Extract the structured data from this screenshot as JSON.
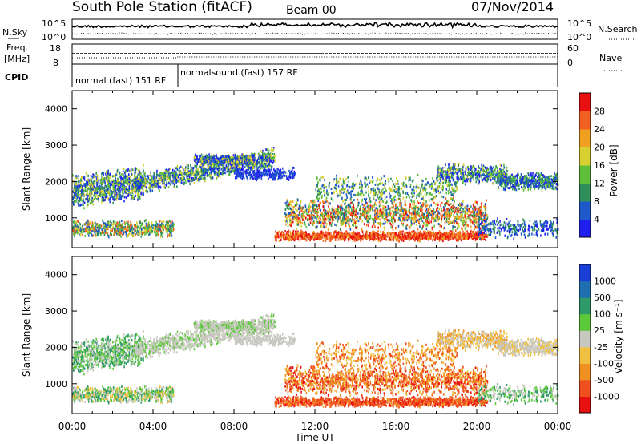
{
  "header": {
    "station": "South Pole Station (fitACF)",
    "beam": "Beam 00",
    "date": "07/Nov/2014"
  },
  "left_labels": {
    "nsky": "N.Sky",
    "freq_line1": "Freq.",
    "freq_line2": "[MHz]",
    "cpid": "CPID"
  },
  "right_labels": {
    "nsearch": "N.Search",
    "nave": "Nave"
  },
  "colors": {
    "power_scale": [
      "#1f20f0",
      "#1f58c8",
      "#2e8f5a",
      "#5fbf3a",
      "#d7d030",
      "#f0a020",
      "#f06020",
      "#e81010"
    ],
    "velocity_scale": [
      "#1a3fd6",
      "#1f6fb0",
      "#2e9a6a",
      "#5cc83a",
      "#c8c8c0",
      "#f0c040",
      "#f09020",
      "#f05020",
      "#e81010"
    ]
  },
  "chart_data": [
    {
      "type": "line",
      "name_panel": "noise",
      "y_left_ticks": [
        "10^5",
        "10^0"
      ],
      "y_right_ticks": [
        "10^5",
        "10^0"
      ],
      "series": [
        {
          "name": "N.Sky",
          "style": "solid",
          "level": "high"
        },
        {
          "name": "N.Search",
          "style": "dotted",
          "level": "low"
        }
      ]
    },
    {
      "type": "line",
      "name_panel": "freq_nave",
      "y_left_ticks": [
        "18",
        "8"
      ],
      "y_right_ticks": [
        "60",
        "0"
      ],
      "series": [
        {
          "name": "Freq.",
          "style": "solid"
        },
        {
          "name": "Nave",
          "style": "dotted"
        }
      ]
    },
    {
      "type": "table",
      "name_panel": "cpid",
      "segments": [
        {
          "label": "normal (fast) 151 RF",
          "start_hour": 0.0,
          "end_hour": 5.2
        },
        {
          "label": "normalsound (fast) 157 RF",
          "start_hour": 5.2,
          "end_hour": 24.0
        }
      ]
    },
    {
      "type": "heatmap",
      "name_panel": "power",
      "xlabel": "",
      "ylabel": "Slant Range [km]",
      "ylim": [
        180,
        4500
      ],
      "yticks": [
        1000,
        2000,
        3000,
        4000
      ],
      "colorbar_label": "Power [dB]",
      "colorbar_ticks": [
        "4",
        "8",
        "12",
        "16",
        "20",
        "24",
        "28"
      ],
      "xlim": [
        0,
        24
      ]
    },
    {
      "type": "heatmap",
      "name_panel": "velocity",
      "xlabel": "Time UT",
      "ylabel": "Slant Range [km]",
      "ylim": [
        180,
        4500
      ],
      "yticks": [
        1000,
        2000,
        3000,
        4000
      ],
      "colorbar_label": "Velocity [m s⁻¹]",
      "colorbar_ticks": [
        "-1000",
        "-500",
        "-100",
        "-25",
        "25",
        "100",
        "500",
        "1000"
      ],
      "xlim": [
        0,
        24
      ]
    }
  ],
  "xaxis": {
    "tick_labels": [
      "00:00",
      "04:00",
      "08:00",
      "12:00",
      "16:00",
      "20:00",
      "00:00"
    ],
    "title": "Time UT"
  }
}
